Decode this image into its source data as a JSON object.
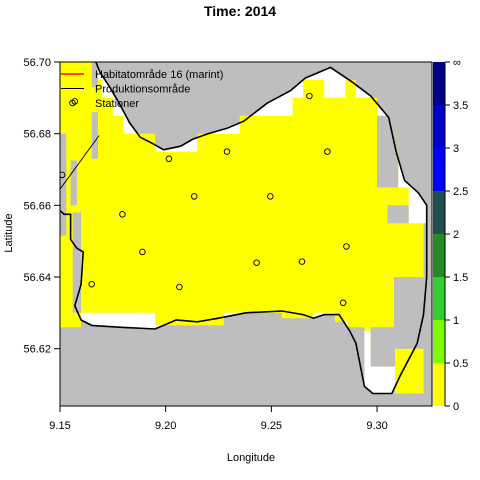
{
  "chart_data": {
    "type": "heatmap",
    "title": "Time: 2014",
    "xlabel": "Longitude",
    "ylabel": "Latitude",
    "xlim": [
      9.15,
      9.326
    ],
    "ylim": [
      56.604,
      56.7
    ],
    "x_ticks": [
      "9.15",
      "9.20",
      "9.25",
      "9.30"
    ],
    "x_tick_values": [
      9.15,
      9.2,
      9.25,
      9.3
    ],
    "y_ticks": [
      "56.62",
      "56.64",
      "56.66",
      "56.68",
      "56.70"
    ],
    "y_tick_values": [
      56.62,
      56.64,
      56.66,
      56.68,
      56.7
    ],
    "grid": false,
    "legend": {
      "placement": "top-left",
      "entries": [
        {
          "label": "Habitatområde 16 (marint)",
          "symbol": "line",
          "color": "#ff0000"
        },
        {
          "label": "Produktionsområde",
          "symbol": "line",
          "color": "#000000"
        },
        {
          "label": "Stationer",
          "symbol": "circle",
          "color": "#000000"
        }
      ]
    },
    "colorbar": {
      "tick_labels": [
        "0",
        "0.5",
        "1",
        "1.5",
        "2",
        "2.5",
        "3",
        "3.5",
        "∞"
      ],
      "tick_values": [
        0,
        0.5,
        1,
        1.5,
        2,
        2.5,
        3,
        3.5,
        4
      ],
      "bins": [
        {
          "from": 0,
          "to": 0.5,
          "color": "#ffff00"
        },
        {
          "from": 0.5,
          "to": 1,
          "color": "#7cfc00"
        },
        {
          "from": 1,
          "to": 1.5,
          "color": "#32cd32"
        },
        {
          "from": 1.5,
          "to": 2,
          "color": "#228b22"
        },
        {
          "from": 2,
          "to": 2.5,
          "color": "#1f4f4f"
        },
        {
          "from": 2.5,
          "to": 3,
          "color": "#0000ff"
        },
        {
          "from": 3,
          "to": 3.5,
          "color": "#0000cd"
        },
        {
          "from": 3.5,
          "to": 4,
          "color": "#00008b"
        }
      ]
    },
    "colors": {
      "land": "#bebebe",
      "water": "#ffffff",
      "grid_value": "#ffff00"
    },
    "stations": [
      {
        "lon": 9.157,
        "lat": 56.689
      },
      {
        "lon": 9.151,
        "lat": 56.6685
      },
      {
        "lon": 9.2015,
        "lat": 56.673
      },
      {
        "lon": 9.229,
        "lat": 56.675
      },
      {
        "lon": 9.268,
        "lat": 56.6905
      },
      {
        "lon": 9.2765,
        "lat": 56.675
      },
      {
        "lon": 9.2135,
        "lat": 56.6625
      },
      {
        "lon": 9.2495,
        "lat": 56.6625
      },
      {
        "lon": 9.1795,
        "lat": 56.6575
      },
      {
        "lon": 9.189,
        "lat": 56.647
      },
      {
        "lon": 9.165,
        "lat": 56.638
      },
      {
        "lon": 9.2065,
        "lat": 56.6372
      },
      {
        "lon": 9.243,
        "lat": 56.644
      },
      {
        "lon": 9.2645,
        "lat": 56.6443
      },
      {
        "lon": 9.2855,
        "lat": 56.6485
      },
      {
        "lon": 9.284,
        "lat": 56.6328
      }
    ],
    "value_region_polygon": [
      [
        9.15,
        56.7
      ],
      [
        9.165,
        56.7
      ],
      [
        9.165,
        56.695
      ],
      [
        9.17,
        56.695
      ],
      [
        9.17,
        56.69
      ],
      [
        9.175,
        56.69
      ],
      [
        9.175,
        56.685
      ],
      [
        9.18,
        56.685
      ],
      [
        9.18,
        56.68
      ],
      [
        9.195,
        56.68
      ],
      [
        9.195,
        56.675
      ],
      [
        9.215,
        56.675
      ],
      [
        9.215,
        56.68
      ],
      [
        9.235,
        56.68
      ],
      [
        9.235,
        56.685
      ],
      [
        9.26,
        56.685
      ],
      [
        9.26,
        56.69
      ],
      [
        9.265,
        56.69
      ],
      [
        9.265,
        56.695
      ],
      [
        9.275,
        56.695
      ],
      [
        9.275,
        56.69
      ],
      [
        9.285,
        56.69
      ],
      [
        9.285,
        56.695
      ],
      [
        9.29,
        56.695
      ],
      [
        9.29,
        56.69
      ],
      [
        9.3,
        56.69
      ],
      [
        9.3,
        56.685
      ],
      [
        9.305,
        56.685
      ],
      [
        9.305,
        56.68
      ],
      [
        9.31,
        56.68
      ],
      [
        9.31,
        56.665
      ],
      [
        9.315,
        56.665
      ],
      [
        9.315,
        56.655
      ],
      [
        9.3245,
        56.655
      ],
      [
        9.3245,
        56.6075
      ],
      [
        9.3085,
        56.6075
      ],
      [
        9.3085,
        56.615
      ],
      [
        9.303,
        56.615
      ],
      [
        9.303,
        56.62
      ],
      [
        9.297,
        56.62
      ],
      [
        9.297,
        56.625
      ],
      [
        9.286,
        56.625
      ],
      [
        9.286,
        56.6275
      ],
      [
        9.28,
        56.6275
      ],
      [
        9.28,
        56.63
      ],
      [
        9.27,
        56.63
      ],
      [
        9.27,
        56.6285
      ],
      [
        9.255,
        56.6285
      ],
      [
        9.255,
        56.63
      ],
      [
        9.2275,
        56.63
      ],
      [
        9.2275,
        56.6265
      ],
      [
        9.195,
        56.6265
      ],
      [
        9.195,
        56.63
      ],
      [
        9.16,
        56.63
      ],
      [
        9.16,
        56.626
      ],
      [
        9.15,
        56.626
      ]
    ],
    "yellow_gaps": [
      [
        [
          9.15,
          56.6515
        ],
        [
          9.153,
          56.6515
        ],
        [
          9.153,
          56.68
        ],
        [
          9.15,
          56.68
        ]
      ],
      [
        [
          9.155,
          56.66
        ],
        [
          9.158,
          56.66
        ],
        [
          9.158,
          56.6725
        ],
        [
          9.155,
          56.6725
        ]
      ],
      [
        [
          9.156,
          56.63
        ],
        [
          9.16,
          56.63
        ],
        [
          9.16,
          56.658
        ],
        [
          9.156,
          56.658
        ]
      ],
      [
        [
          9.165,
          56.7
        ],
        [
          9.168,
          56.7
        ],
        [
          9.168,
          56.693
        ],
        [
          9.165,
          56.693
        ]
      ],
      [
        [
          9.165,
          56.686
        ],
        [
          9.168,
          56.686
        ],
        [
          9.168,
          56.673
        ],
        [
          9.165,
          56.673
        ]
      ],
      [
        [
          9.3,
          56.685
        ],
        [
          9.31,
          56.685
        ],
        [
          9.31,
          56.665
        ],
        [
          9.3,
          56.665
        ]
      ],
      [
        [
          9.305,
          56.66
        ],
        [
          9.315,
          56.66
        ],
        [
          9.315,
          56.655
        ],
        [
          9.305,
          56.655
        ]
      ],
      [
        [
          9.308,
          56.64
        ],
        [
          9.3245,
          56.64
        ],
        [
          9.3245,
          56.62
        ],
        [
          9.308,
          56.62
        ]
      ],
      [
        [
          9.297,
          56.626
        ],
        [
          9.3085,
          56.626
        ],
        [
          9.3085,
          56.615
        ],
        [
          9.297,
          56.615
        ]
      ],
      [
        [
          9.2835,
          56.626
        ],
        [
          9.294,
          56.626
        ],
        [
          9.294,
          56.6075
        ],
        [
          9.2835,
          56.6075
        ]
      ],
      [
        [
          9.3245,
          56.6075
        ],
        [
          9.3245,
          56.655
        ],
        [
          9.322,
          56.655
        ],
        [
          9.322,
          56.6075
        ]
      ]
    ],
    "coastline": [
      [
        9.15,
        56.6585
      ],
      [
        9.152,
        56.6575
      ],
      [
        9.155,
        56.6575
      ],
      [
        9.155,
        56.6505
      ],
      [
        9.158,
        56.648
      ],
      [
        9.161,
        56.647
      ],
      [
        9.16,
        56.638
      ],
      [
        9.157,
        56.632
      ],
      [
        9.16,
        56.628
      ],
      [
        9.165,
        56.6265
      ],
      [
        9.178,
        56.626
      ],
      [
        9.195,
        56.6255
      ],
      [
        9.205,
        56.628
      ],
      [
        9.215,
        56.6275
      ],
      [
        9.225,
        56.6285
      ],
      [
        9.238,
        56.63
      ],
      [
        9.255,
        56.6305
      ],
      [
        9.265,
        56.6295
      ],
      [
        9.27,
        56.6285
      ],
      [
        9.275,
        56.6295
      ],
      [
        9.282,
        56.6295
      ],
      [
        9.287,
        56.625
      ],
      [
        9.29,
        56.6215
      ],
      [
        9.294,
        56.6095
      ],
      [
        9.298,
        56.6075
      ],
      [
        9.307,
        56.6075
      ],
      [
        9.311,
        56.6125
      ],
      [
        9.319,
        56.6215
      ],
      [
        9.322,
        56.6295
      ],
      [
        9.3235,
        56.64
      ],
      [
        9.3235,
        56.66
      ],
      [
        9.3195,
        56.6635
      ],
      [
        9.313,
        56.667
      ],
      [
        9.309,
        56.675
      ],
      [
        9.3055,
        56.6845
      ],
      [
        9.297,
        56.6905
      ],
      [
        9.288,
        56.6945
      ],
      [
        9.278,
        56.6985
      ],
      [
        9.266,
        56.6955
      ],
      [
        9.259,
        56.692
      ],
      [
        9.248,
        56.6885
      ],
      [
        9.237,
        56.6835
      ],
      [
        9.229,
        56.6815
      ],
      [
        9.22,
        56.68
      ],
      [
        9.213,
        56.6785
      ],
      [
        9.207,
        56.6765
      ],
      [
        9.199,
        56.6755
      ],
      [
        9.193,
        56.6775
      ],
      [
        9.188,
        56.679
      ],
      [
        9.183,
        56.683
      ],
      [
        9.178,
        56.6885
      ],
      [
        9.173,
        56.6935
      ],
      [
        9.169,
        56.697
      ],
      [
        9.167,
        56.7
      ]
    ],
    "production_boundary": [
      [
        9.15,
        56.6645
      ],
      [
        9.1685,
        56.6795
      ]
    ]
  }
}
